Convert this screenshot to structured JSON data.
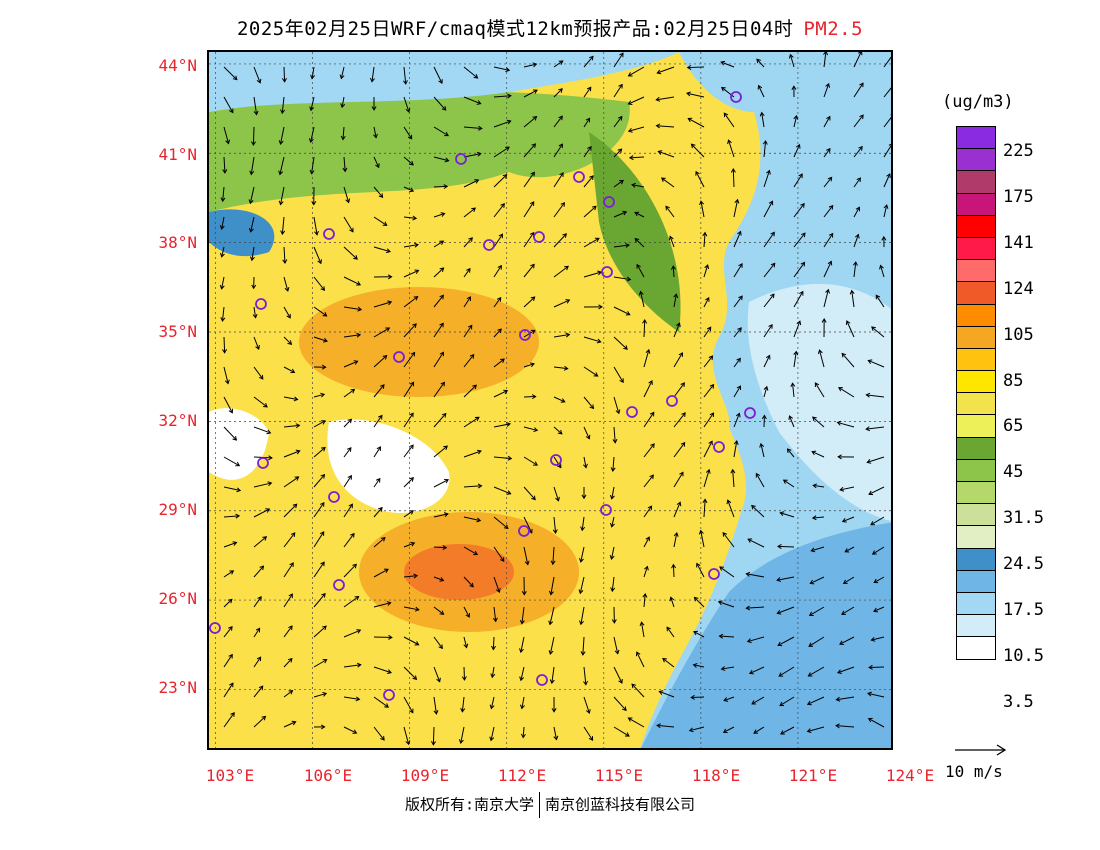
{
  "title": {
    "main": "2025年02月25日WRF/cmaq模式12km预报产品:02月25日04时",
    "product": "PM2.5"
  },
  "map": {
    "lat_labels": [
      "44°N",
      "41°N",
      "38°N",
      "35°N",
      "32°N",
      "29°N",
      "26°N",
      "23°N"
    ],
    "lon_labels": [
      "103°E",
      "106°E",
      "109°E",
      "112°E",
      "115°E",
      "118°E",
      "121°E",
      "124°E"
    ],
    "sea_color": "#9fd6f2",
    "land_color": "#fbe04a"
  },
  "legend": {
    "unit": "(ug/m3)",
    "labels": [
      "225",
      "175",
      "141",
      "124",
      "105",
      "85",
      "65",
      "45",
      "31.5",
      "24.5",
      "17.5",
      "10.5",
      "3.5"
    ],
    "colors": [
      "#8a2be2",
      "#9b30d0",
      "#b03a6a",
      "#c8157a",
      "#ff0000",
      "#ff1a4a",
      "#ff6a6a",
      "#f05a28",
      "#ff8c00",
      "#f5a623",
      "#ffc20e",
      "#ffe600",
      "#f2e34c",
      "#eef05a",
      "#6aa632",
      "#8dc44a",
      "#b5d86a",
      "#cde09a",
      "#e2eec3",
      "#3f8fc9",
      "#6fb6e6",
      "#a2d8f3",
      "#d2ecf8",
      "#ffffff"
    ]
  },
  "wind": {
    "label": "10 m/s"
  },
  "footer": {
    "copyright": "版权所有:南京大学",
    "company": "南京创蓝科技有限公司"
  }
}
